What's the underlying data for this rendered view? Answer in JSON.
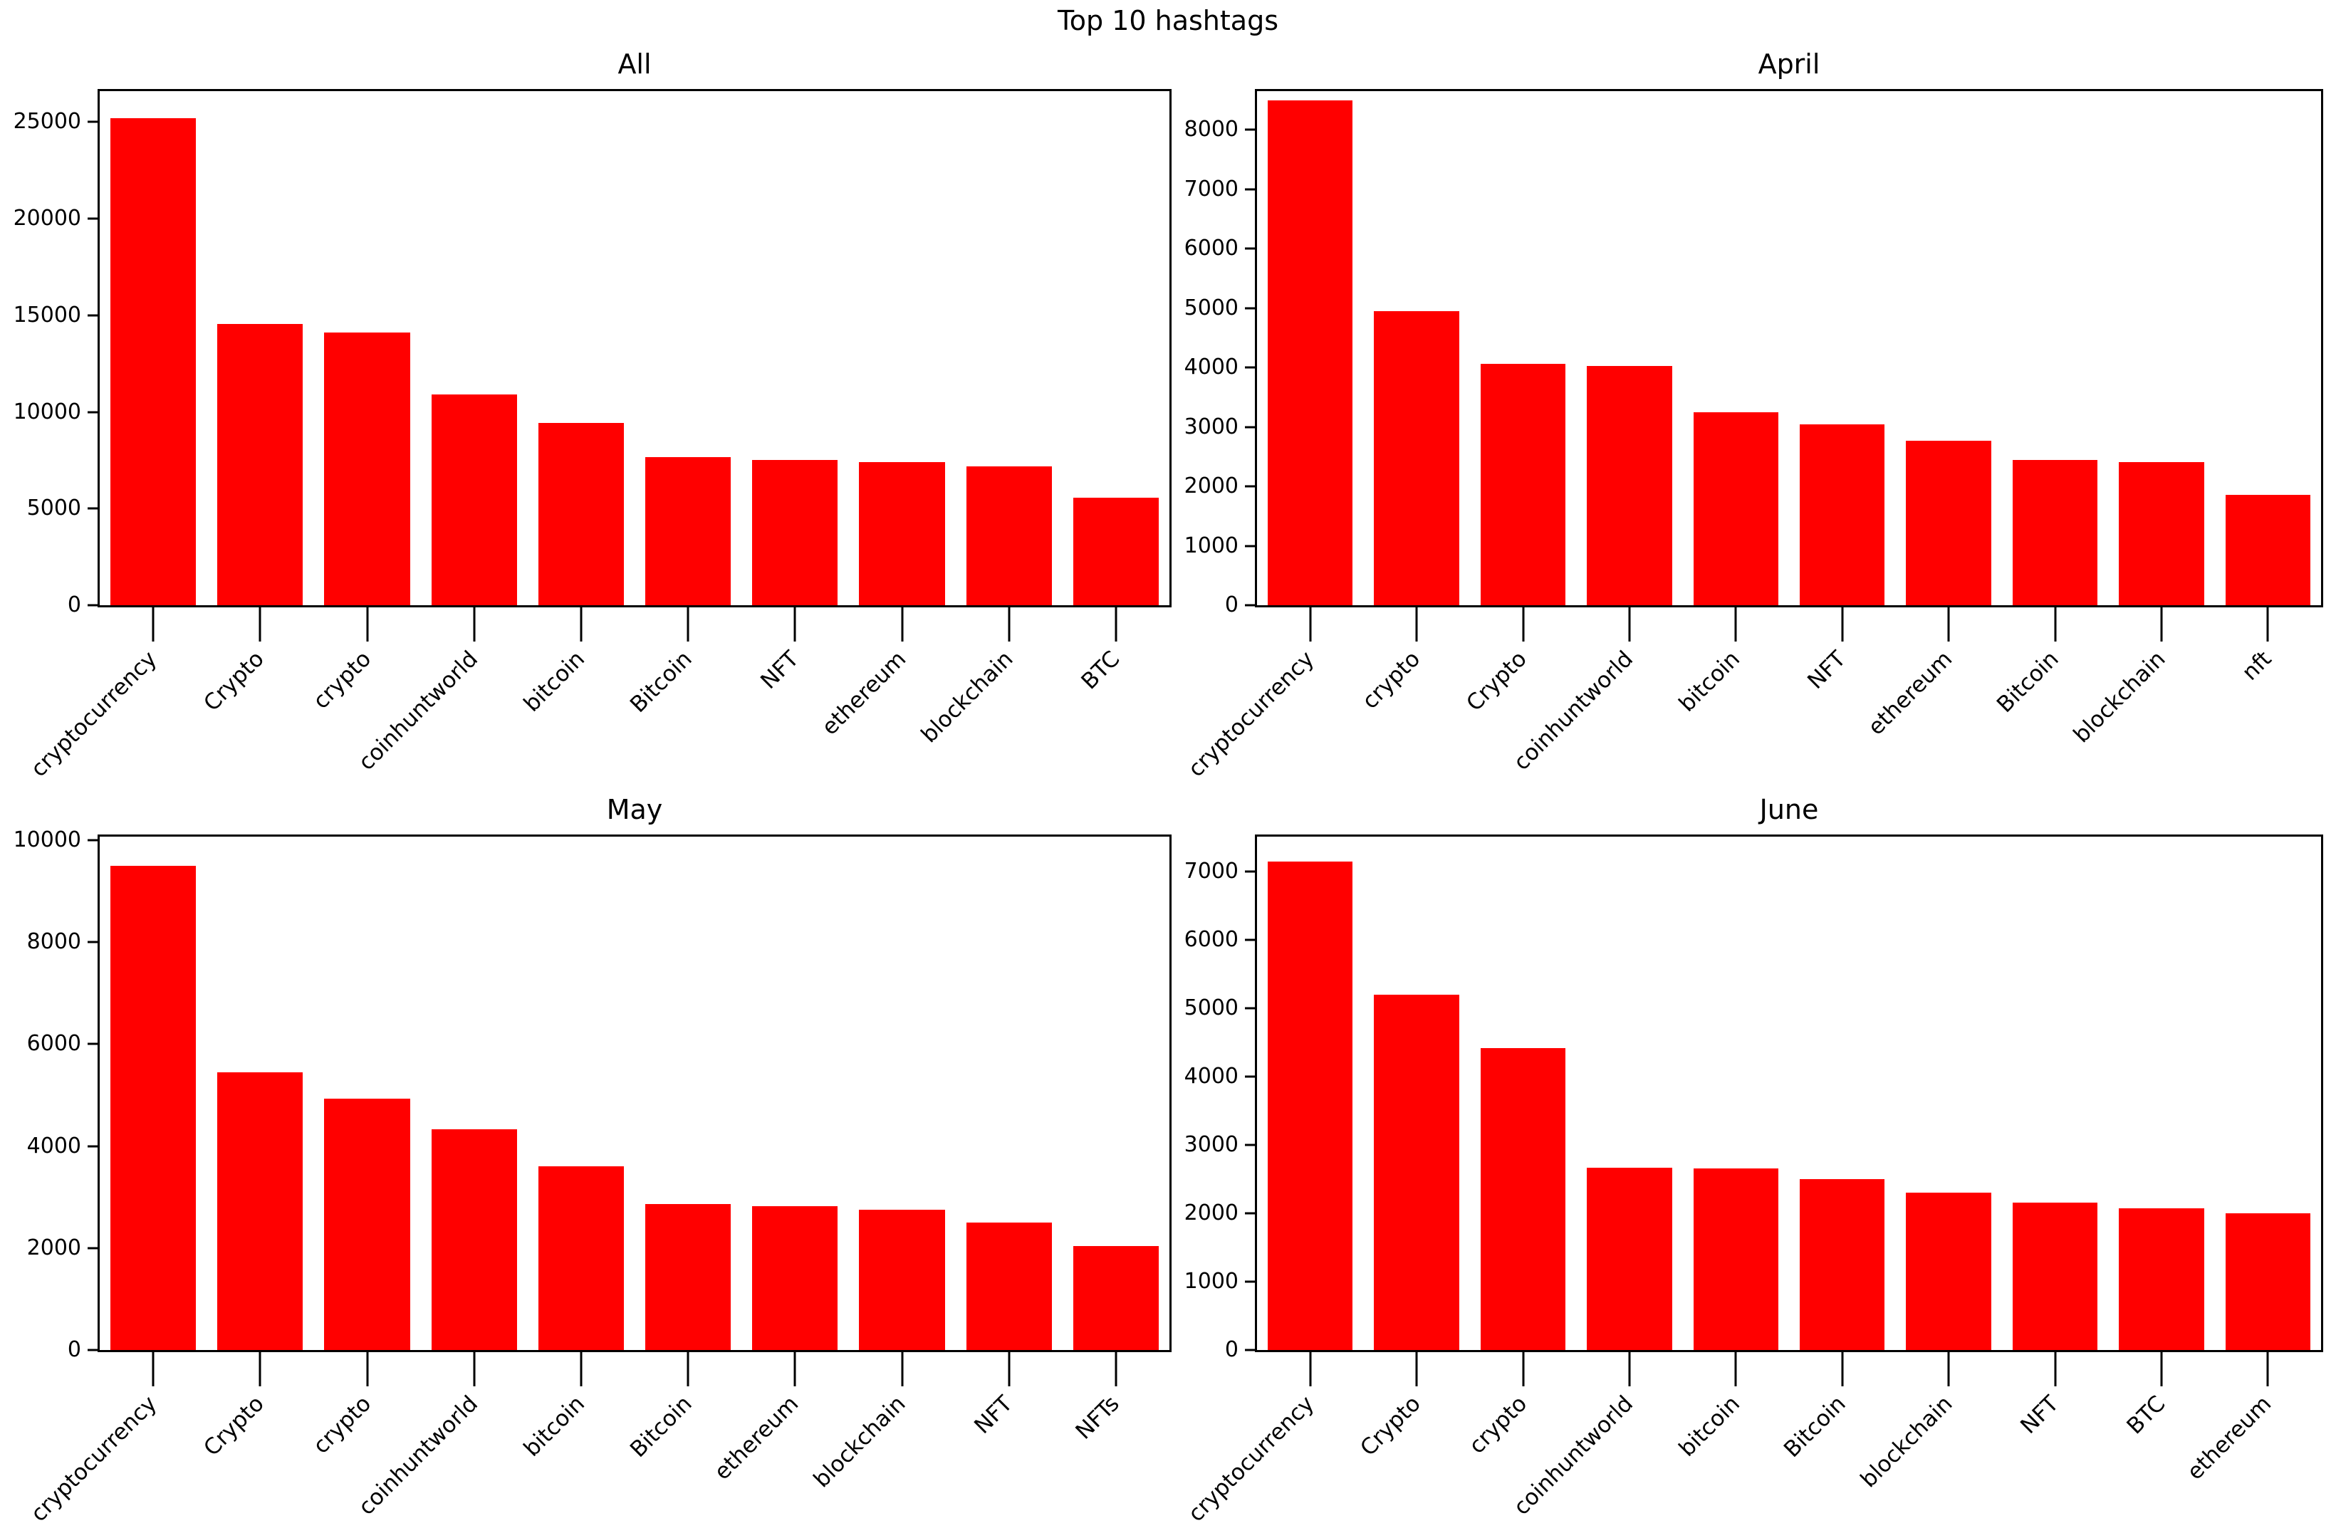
{
  "suptitle": "Top 10 hashtags",
  "bar_color": "#ff0000",
  "chart_data": [
    {
      "type": "bar",
      "title": "All",
      "categories": [
        "cryptocurrency",
        "Crypto",
        "crypto",
        "coinhuntworld",
        "bitcoin",
        "Bitcoin",
        "NFT",
        "ethereum",
        "blockchain",
        "BTC"
      ],
      "values": [
        25200,
        14550,
        14100,
        10900,
        9450,
        7650,
        7500,
        7400,
        7200,
        5550
      ],
      "yticks": [
        0,
        5000,
        10000,
        15000,
        20000,
        25000
      ],
      "ylim": [
        0,
        26600
      ],
      "xlabel": "",
      "ylabel": "",
      "grid": false,
      "xtick_rotation": 45
    },
    {
      "type": "bar",
      "title": "April",
      "categories": [
        "cryptocurrency",
        "crypto",
        "Crypto",
        "coinhuntworld",
        "bitcoin",
        "NFT",
        "ethereum",
        "Bitcoin",
        "blockchain",
        "nft"
      ],
      "values": [
        8500,
        4950,
        4060,
        4020,
        3250,
        3040,
        2770,
        2440,
        2410,
        1860
      ],
      "yticks": [
        0,
        1000,
        2000,
        3000,
        4000,
        5000,
        6000,
        7000,
        8000
      ],
      "ylim": [
        0,
        8650
      ],
      "xlabel": "",
      "ylabel": "",
      "grid": false,
      "xtick_rotation": 45
    },
    {
      "type": "bar",
      "title": "May",
      "categories": [
        "cryptocurrency",
        "Crypto",
        "crypto",
        "coinhuntworld",
        "bitcoin",
        "Bitcoin",
        "ethereum",
        "blockchain",
        "NFT",
        "NFTs"
      ],
      "values": [
        9500,
        5450,
        4930,
        4330,
        3610,
        2870,
        2820,
        2750,
        2500,
        2040
      ],
      "yticks": [
        0,
        2000,
        4000,
        6000,
        8000,
        10000
      ],
      "ylim": [
        0,
        10070
      ],
      "xlabel": "",
      "ylabel": "",
      "grid": false,
      "xtick_rotation": 45
    },
    {
      "type": "bar",
      "title": "June",
      "categories": [
        "cryptocurrency",
        "Crypto",
        "crypto",
        "coinhuntworld",
        "bitcoin",
        "Bitcoin",
        "blockchain",
        "NFT",
        "BTC",
        "ethereum"
      ],
      "values": [
        7150,
        5200,
        4420,
        2670,
        2660,
        2500,
        2300,
        2160,
        2070,
        2000
      ],
      "yticks": [
        0,
        1000,
        2000,
        3000,
        4000,
        5000,
        6000,
        7000
      ],
      "ylim": [
        0,
        7510
      ],
      "xlabel": "",
      "ylabel": "",
      "grid": false,
      "xtick_rotation": 45
    }
  ]
}
